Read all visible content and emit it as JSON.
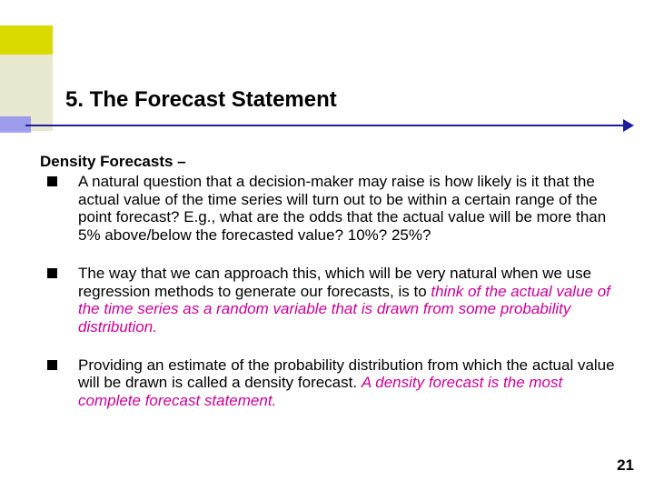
{
  "title": "5. The Forecast Statement",
  "subheading": "Density Forecasts –",
  "bullets": {
    "b1": "A natural question that a decision-maker may raise is how likely is it that the actual value of the time series will turn out to be within a certain range of the point forecast? E.g., what are the odds that the actual value will be more than 5% above/below the forecasted value? 10%? 25%?",
    "b2_plain": "The way that we can approach this, which will be very natural when we use regression methods to generate our forecasts, is to ",
    "b2_emph": "think of the actual value of the time series as a random variable that is drawn from some probability distribution.",
    "b3_plain": "Providing an estimate of the probability distribution from which the actual value will be drawn is called a density forecast. ",
    "b3_emph": "A density forecast is the most complete forecast statement."
  },
  "page_number": "21",
  "colors": {
    "rule": "#1c1c9c",
    "emph": "#cc0099",
    "corner_yellow": "#dada00",
    "corner_tan": "#e8e8d0",
    "corner_blue": "#5c5cff"
  }
}
